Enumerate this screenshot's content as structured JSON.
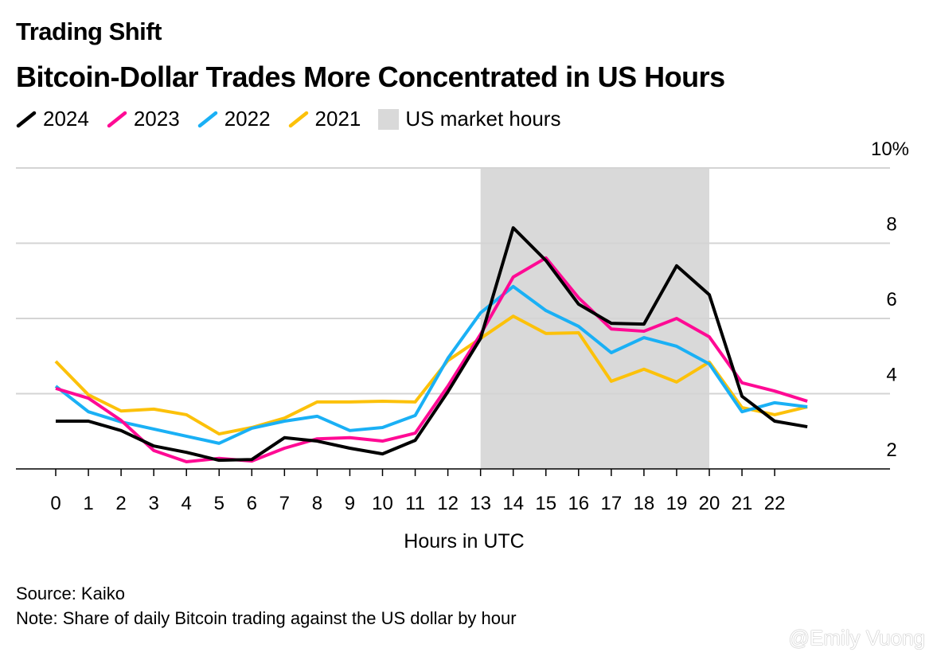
{
  "kicker": "Trading Shift",
  "title": "Bitcoin-Dollar Trades More Concentrated in US Hours",
  "source": "Source: Kaiko",
  "note": "Note: Share of daily Bitcoin trading against the US dollar by hour",
  "watermark": "@Emily Vuong",
  "legend": {
    "shade_label": "US market hours"
  },
  "chart_data": {
    "type": "line",
    "title": "Bitcoin-Dollar Trades More Concentrated in US Hours",
    "xlabel": "Hours in UTC",
    "ylabel": "",
    "x": [
      0,
      1,
      2,
      3,
      4,
      5,
      6,
      7,
      8,
      9,
      10,
      11,
      12,
      13,
      14,
      15,
      16,
      17,
      18,
      19,
      20,
      21,
      22,
      23
    ],
    "x_tick_labels": [
      "0",
      "1",
      "2",
      "3",
      "4",
      "5",
      "6",
      "7",
      "8",
      "9",
      "10",
      "11",
      "12",
      "13",
      "14",
      "15",
      "16",
      "17",
      "18",
      "19",
      "20",
      "21",
      "22"
    ],
    "y_tick_labels": [
      "2",
      "4",
      "6",
      "8",
      "10%"
    ],
    "y_ticks": [
      2,
      4,
      6,
      8,
      10
    ],
    "ylim": [
      2,
      10
    ],
    "grid": true,
    "legend_placement": "top-left",
    "shaded_region": {
      "label": "US market hours",
      "x": [
        13,
        20
      ],
      "color": "#d9d9d9"
    },
    "series": [
      {
        "name": "2024",
        "color": "#000000",
        "values": [
          3.27,
          3.27,
          3.02,
          2.61,
          2.44,
          2.23,
          2.25,
          2.83,
          2.74,
          2.55,
          2.4,
          2.76,
          4.05,
          5.47,
          8.41,
          7.54,
          6.38,
          5.87,
          5.85,
          7.4,
          6.63,
          3.93,
          3.27,
          3.12
        ]
      },
      {
        "name": "2023",
        "color": "#ff0a94",
        "values": [
          4.14,
          3.88,
          3.29,
          2.49,
          2.19,
          2.28,
          2.21,
          2.55,
          2.8,
          2.83,
          2.74,
          2.95,
          4.2,
          5.58,
          7.1,
          7.61,
          6.55,
          5.72,
          5.66,
          6.0,
          5.51,
          4.29,
          4.07,
          3.8
        ]
      },
      {
        "name": "2022",
        "color": "#1ab0f5",
        "values": [
          4.2,
          3.52,
          3.25,
          3.06,
          2.87,
          2.68,
          3.08,
          3.27,
          3.4,
          3.02,
          3.1,
          3.42,
          4.94,
          6.15,
          6.85,
          6.21,
          5.79,
          5.09,
          5.49,
          5.26,
          4.79,
          3.52,
          3.76,
          3.65
        ]
      },
      {
        "name": "2021",
        "color": "#fcc10a",
        "values": [
          4.86,
          3.97,
          3.54,
          3.59,
          3.44,
          2.93,
          3.1,
          3.35,
          3.78,
          3.78,
          3.8,
          3.78,
          4.88,
          5.47,
          6.06,
          5.6,
          5.62,
          4.33,
          4.65,
          4.31,
          4.84,
          3.63,
          3.44,
          3.65
        ]
      }
    ]
  }
}
